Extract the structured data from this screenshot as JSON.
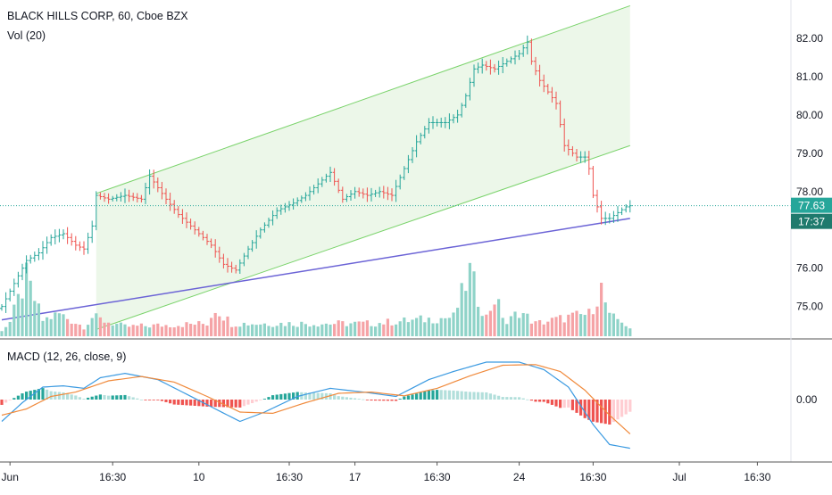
{
  "header": {
    "title": "BLACK HILLS CORP, 60, Cboe BZX",
    "volume_indicator": "Vol (20)"
  },
  "macd_panel": {
    "label": "MACD (12, 26, close, 9)",
    "zero_label": "0.00"
  },
  "price_axis": {
    "ticks": [
      "82.00",
      "81.00",
      "80.00",
      "79.00",
      "78.00",
      "76.00",
      "75.00"
    ]
  },
  "time_axis": {
    "ticks": [
      "Jun",
      "16:30",
      "10",
      "16:30",
      "17",
      "16:30",
      "24",
      "16:30",
      "Jul",
      "16:30"
    ]
  },
  "badges": {
    "last_price": "77.63",
    "countdown": "17:37"
  },
  "colors": {
    "up": "#26a69a",
    "down": "#ef5350",
    "channel": "#7ad36b",
    "channel_fill": "#e9f6e5",
    "trendline": "#6b63d6",
    "macd_line": "#3b9ae1",
    "signal_line": "#f08a3c",
    "price_line": "#26a69a"
  },
  "chart_data": {
    "type": "ohlc",
    "symbol": "BLACK HILLS CORP",
    "interval": "60",
    "exchange": "Cboe BZX",
    "ylim": [
      74.2,
      83.0
    ],
    "last_price": 77.63,
    "x_labels": [
      "Jun",
      "16:30",
      "10",
      "16:30",
      "17",
      "16:30",
      "24",
      "16:30",
      "Jul",
      "16:30"
    ],
    "price_series": [
      {
        "bar": 0,
        "price": 75.0
      },
      {
        "bar": 3,
        "price": 75.6
      },
      {
        "bar": 6,
        "price": 76.2
      },
      {
        "bar": 9,
        "price": 76.4
      },
      {
        "bar": 12,
        "price": 76.8
      },
      {
        "bar": 15,
        "price": 76.9
      },
      {
        "bar": 18,
        "price": 76.6
      },
      {
        "bar": 20,
        "price": 76.5
      },
      {
        "bar": 22,
        "price": 77.1
      },
      {
        "bar": 23,
        "price": 77.9
      },
      {
        "bar": 26,
        "price": 77.8
      },
      {
        "bar": 30,
        "price": 77.9
      },
      {
        "bar": 34,
        "price": 77.8
      },
      {
        "bar": 36,
        "price": 78.4
      },
      {
        "bar": 40,
        "price": 77.8
      },
      {
        "bar": 43,
        "price": 77.4
      },
      {
        "bar": 47,
        "price": 77.0
      },
      {
        "bar": 51,
        "price": 76.6
      },
      {
        "bar": 54,
        "price": 76.1
      },
      {
        "bar": 57,
        "price": 75.95
      },
      {
        "bar": 60,
        "price": 76.5
      },
      {
        "bar": 63,
        "price": 77.0
      },
      {
        "bar": 67,
        "price": 77.5
      },
      {
        "bar": 71,
        "price": 77.7
      },
      {
        "bar": 74,
        "price": 77.9
      },
      {
        "bar": 77,
        "price": 78.2
      },
      {
        "bar": 80,
        "price": 78.5
      },
      {
        "bar": 83,
        "price": 77.8
      },
      {
        "bar": 86,
        "price": 78.0
      },
      {
        "bar": 89,
        "price": 77.9
      },
      {
        "bar": 92,
        "price": 78.0
      },
      {
        "bar": 95,
        "price": 77.9
      },
      {
        "bar": 98,
        "price": 78.6
      },
      {
        "bar": 101,
        "price": 79.3
      },
      {
        "bar": 104,
        "price": 79.8
      },
      {
        "bar": 108,
        "price": 79.8
      },
      {
        "bar": 111,
        "price": 80.0
      },
      {
        "bar": 113,
        "price": 80.5
      },
      {
        "bar": 115,
        "price": 81.2
      },
      {
        "bar": 117,
        "price": 81.3
      },
      {
        "bar": 120,
        "price": 81.2
      },
      {
        "bar": 123,
        "price": 81.4
      },
      {
        "bar": 126,
        "price": 81.6
      },
      {
        "bar": 128,
        "price": 81.9
      },
      {
        "bar": 129,
        "price": 81.4
      },
      {
        "bar": 131,
        "price": 80.9
      },
      {
        "bar": 133,
        "price": 80.6
      },
      {
        "bar": 135,
        "price": 80.3
      },
      {
        "bar": 137,
        "price": 79.2
      },
      {
        "bar": 140,
        "price": 78.9
      },
      {
        "bar": 142,
        "price": 78.9
      },
      {
        "bar": 143,
        "price": 78.6
      },
      {
        "bar": 144,
        "price": 77.9
      },
      {
        "bar": 146,
        "price": 77.3
      },
      {
        "bar": 148,
        "price": 77.3
      },
      {
        "bar": 150,
        "price": 77.45
      },
      {
        "bar": 152,
        "price": 77.6
      },
      {
        "bar": 153,
        "price": 77.63
      }
    ],
    "volume_series": [
      {
        "bar": 0,
        "value": 0.1
      },
      {
        "bar": 2,
        "value": 0.22
      },
      {
        "bar": 6,
        "value": 0.9
      },
      {
        "bar": 10,
        "value": 0.25
      },
      {
        "bar": 14,
        "value": 0.35
      },
      {
        "bar": 20,
        "value": 0.15
      },
      {
        "bar": 22,
        "value": 0.3
      },
      {
        "bar": 30,
        "value": 0.15
      },
      {
        "bar": 50,
        "value": 0.2
      },
      {
        "bar": 52,
        "value": 0.45
      },
      {
        "bar": 56,
        "value": 0.2
      },
      {
        "bar": 90,
        "value": 0.2
      },
      {
        "bar": 110,
        "value": 0.3
      },
      {
        "bar": 114,
        "value": 1.0
      },
      {
        "bar": 116,
        "value": 0.6
      },
      {
        "bar": 118,
        "value": 0.3
      },
      {
        "bar": 120,
        "value": 0.6
      },
      {
        "bar": 123,
        "value": 0.2
      },
      {
        "bar": 126,
        "value": 0.4
      },
      {
        "bar": 130,
        "value": 0.2
      },
      {
        "bar": 138,
        "value": 0.3
      },
      {
        "bar": 143,
        "value": 0.35
      },
      {
        "bar": 146,
        "value": 0.75
      },
      {
        "bar": 148,
        "value": 0.3
      },
      {
        "bar": 151,
        "value": 0.25
      },
      {
        "bar": 153,
        "value": 0.1
      }
    ],
    "macd_series": [
      {
        "bar": 0,
        "value": -0.35
      },
      {
        "bar": 5,
        "value": -0.05
      },
      {
        "bar": 10,
        "value": 0.2
      },
      {
        "bar": 15,
        "value": 0.22
      },
      {
        "bar": 20,
        "value": 0.18
      },
      {
        "bar": 24,
        "value": 0.35
      },
      {
        "bar": 30,
        "value": 0.42
      },
      {
        "bar": 38,
        "value": 0.32
      },
      {
        "bar": 44,
        "value": 0.12
      },
      {
        "bar": 52,
        "value": -0.15
      },
      {
        "bar": 58,
        "value": -0.35
      },
      {
        "bar": 64,
        "value": -0.2
      },
      {
        "bar": 72,
        "value": 0.05
      },
      {
        "bar": 80,
        "value": 0.18
      },
      {
        "bar": 88,
        "value": 0.12
      },
      {
        "bar": 96,
        "value": 0.05
      },
      {
        "bar": 104,
        "value": 0.32
      },
      {
        "bar": 110,
        "value": 0.45
      },
      {
        "bar": 118,
        "value": 0.6
      },
      {
        "bar": 126,
        "value": 0.6
      },
      {
        "bar": 132,
        "value": 0.48
      },
      {
        "bar": 138,
        "value": 0.2
      },
      {
        "bar": 144,
        "value": -0.4
      },
      {
        "bar": 148,
        "value": -0.72
      },
      {
        "bar": 153,
        "value": -0.78
      }
    ],
    "signal_series": [
      {
        "bar": 0,
        "value": -0.25
      },
      {
        "bar": 6,
        "value": -0.15
      },
      {
        "bar": 12,
        "value": 0.05
      },
      {
        "bar": 18,
        "value": 0.12
      },
      {
        "bar": 26,
        "value": 0.3
      },
      {
        "bar": 34,
        "value": 0.37
      },
      {
        "bar": 42,
        "value": 0.28
      },
      {
        "bar": 50,
        "value": 0.05
      },
      {
        "bar": 58,
        "value": -0.2
      },
      {
        "bar": 66,
        "value": -0.22
      },
      {
        "bar": 74,
        "value": -0.05
      },
      {
        "bar": 82,
        "value": 0.1
      },
      {
        "bar": 90,
        "value": 0.12
      },
      {
        "bar": 98,
        "value": 0.06
      },
      {
        "bar": 106,
        "value": 0.18
      },
      {
        "bar": 114,
        "value": 0.38
      },
      {
        "bar": 122,
        "value": 0.55
      },
      {
        "bar": 130,
        "value": 0.56
      },
      {
        "bar": 136,
        "value": 0.45
      },
      {
        "bar": 142,
        "value": 0.15
      },
      {
        "bar": 148,
        "value": -0.25
      },
      {
        "bar": 153,
        "value": -0.55
      }
    ],
    "channel": {
      "start_bar": 23,
      "end_bar": 153,
      "upper_start": 77.95,
      "upper_end": 82.85,
      "lower_start": 74.4,
      "lower_end": 79.2
    },
    "trendline": {
      "start_bar": 0,
      "end_bar": 153,
      "start_price": 74.65,
      "end_price": 77.3
    }
  }
}
